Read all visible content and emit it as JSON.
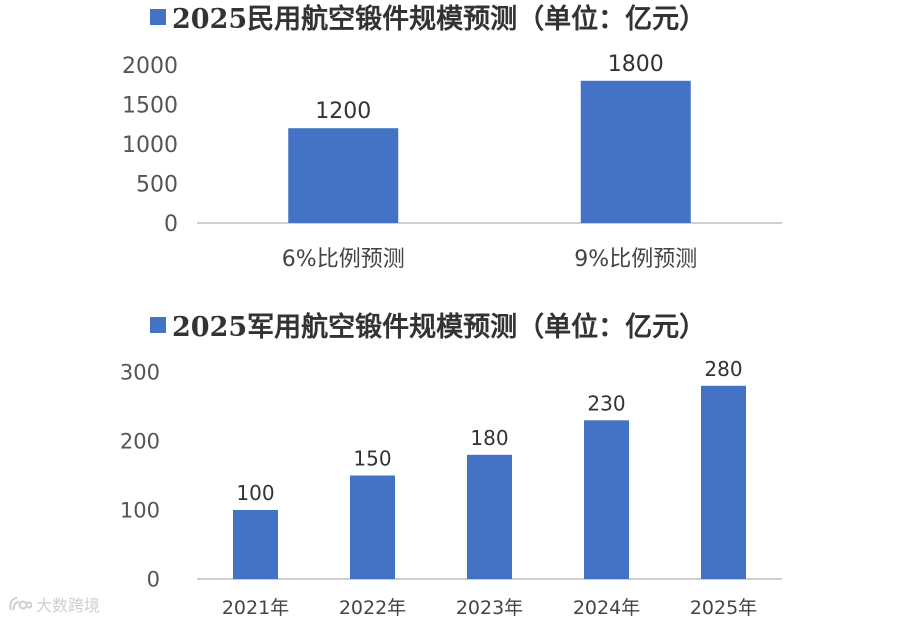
{
  "colors": {
    "bar": "#4472c4",
    "axis": "#bfbfbf"
  },
  "chart_data": [
    {
      "type": "bar",
      "title": "2025民用航空锻件规模预测（单位：亿元）",
      "categories": [
        "6%比例预测",
        "9%比例预测"
      ],
      "values": [
        1200,
        1800
      ],
      "ylim": [
        0,
        2000
      ],
      "yticks": [
        0,
        500,
        1000,
        1500,
        2000
      ],
      "grid": false,
      "legend": "top-left"
    },
    {
      "type": "bar",
      "title": "2025军用航空锻件规模预测（单位：亿元）",
      "categories": [
        "2021年",
        "2022年",
        "2023年",
        "2024年",
        "2025年"
      ],
      "values": [
        100,
        150,
        180,
        230,
        280
      ],
      "ylim": [
        0,
        300
      ],
      "yticks": [
        0,
        100,
        200,
        300
      ],
      "grid": false,
      "legend": "top-left"
    }
  ],
  "watermark": {
    "text": "大数跨境",
    "icon": "brand-logo-icon"
  }
}
